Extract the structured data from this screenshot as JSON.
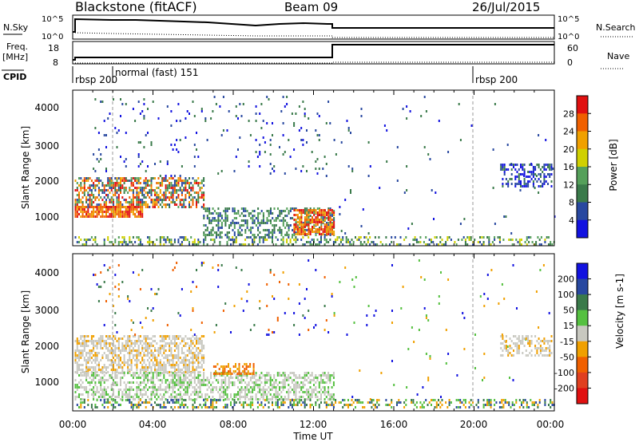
{
  "header": {
    "title": "Blackstone (fitACF)",
    "beam": "Beam 09",
    "date": "26/Jul/2015"
  },
  "strips": {
    "nsky_label": "N.Sky",
    "nsky_ticks": [
      "10^5",
      "10^0"
    ],
    "nsearch_label": "N.Search",
    "freq_label": "Freq.",
    "freq_unit": "[MHz]",
    "freq_ticks": [
      "18",
      "8"
    ],
    "nave_ticks": [
      "60",
      "0"
    ],
    "nave_label": "Nave",
    "cpid_label": "CPID",
    "cpid_segments": [
      "rbsp 200",
      "normal (fast) 151",
      "rbsp 200"
    ]
  },
  "time_axis": {
    "label": "Time UT",
    "ticks": [
      "00:00",
      "04:00",
      "08:00",
      "12:00",
      "16:00",
      "20:00",
      "00:00"
    ]
  },
  "colors": {
    "power": [
      "#1212e0",
      "#2848a0",
      "#3a7a4a",
      "#55a05a",
      "#d0d000",
      "#f0a000",
      "#f06000",
      "#e01010"
    ],
    "velocity": [
      "#1212e0",
      "#2848a0",
      "#3a7a4a",
      "#55c040",
      "#c8c8c0",
      "#f0a000",
      "#f06000",
      "#e04020",
      "#e01010"
    ]
  },
  "chart_data": [
    {
      "type": "heatmap",
      "panel": "power",
      "ylabel": "Slant Range [km]",
      "xlabel": "Time UT",
      "xlim": [
        "00:00",
        "24:00"
      ],
      "ylim": [
        180,
        4500
      ],
      "yticks": [
        "1000",
        "2000",
        "3000",
        "4000"
      ],
      "colorbar_label": "Power [dB]",
      "colorbar_ticks": [
        "4",
        "8",
        "12",
        "16",
        "20",
        "24",
        "28"
      ],
      "colorbar_range": [
        0,
        32
      ],
      "cpid_change_times": [
        "01:50",
        "20:00"
      ]
    },
    {
      "type": "heatmap",
      "panel": "velocity",
      "ylabel": "Slant Range [km]",
      "xlabel": "Time UT",
      "xlim": [
        "00:00",
        "24:00"
      ],
      "ylim": [
        180,
        4500
      ],
      "yticks": [
        "1000",
        "2000",
        "3000",
        "4000"
      ],
      "colorbar_label": "Velocity [m s-1]",
      "colorbar_ticks": [
        "200",
        "100",
        "50",
        "15",
        "-15",
        "-50",
        "-100",
        "-200"
      ]
    }
  ]
}
